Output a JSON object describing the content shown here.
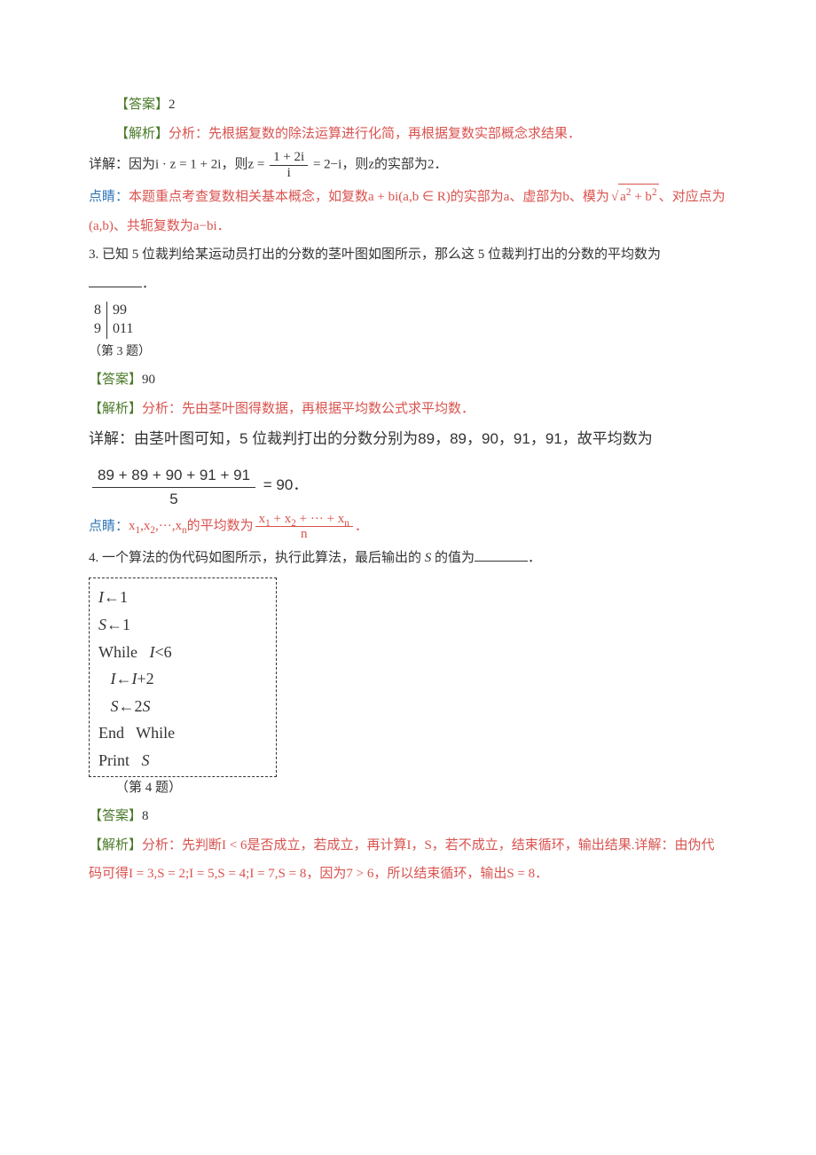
{
  "q2": {
    "answer_label": "【答案】",
    "answer_value": "2",
    "analysis_label": "【解析】",
    "analysis_text": "分析：先根据复数的除法运算进行化简，再根据复数实部概念求结果．",
    "detail_prefix": "详解：因为",
    "eq_lhs": "i · z = 1 + 2i",
    "eq_mid": "，则",
    "frac_num": "1 + 2i",
    "frac_den": "i",
    "eq_rhs": " = 2−i",
    "tail": "，则z的实部为2．",
    "note_prefix": "点睛：本题重点考查复数相关基本概念，如复数a + bi(a,b ∈ R)的实部为a、虚部为b、模为",
    "sqrt_inner": "a<sup>2</sup> + b<sup>2</sup>",
    "note_suffix": "、对应点为",
    "note_line2": "(a,b)、共轭复数为a−bi．"
  },
  "q3": {
    "stem": "3.  已知 5 位裁判给某运动员打出的分数的茎叶图如图所示，那么这 5 位裁判打出的分数的平均数为",
    "blank_suffix": "．",
    "stemleaf": {
      "rows": [
        {
          "stem": "8",
          "leaf": "99"
        },
        {
          "stem": "9",
          "leaf": "011"
        }
      ],
      "caption": "（第 3 题）"
    },
    "answer_label": "【答案】",
    "answer_value": "90",
    "analysis_label": "【解析】",
    "analysis_text": "分析：先由茎叶图得数据，再根据平均数公式求平均数．",
    "detail_text": "详解：由茎叶图可知，5 位裁判打出的分数分别为89，89，90，91，91，故平均数为",
    "calc_num": "89 + 89 + 90 + 91 + 91",
    "calc_den": "5",
    "calc_result": " = 90．",
    "note_prefix": "点睛：",
    "note_seq": "x<sub>1</sub>,x<sub>2</sub>,···,x<sub>n</sub>的平均数为",
    "note_frac_num": "x<sub>1</sub> + x<sub>2</sub> + ··· + x<sub>n</sub>",
    "note_frac_den": "n",
    "note_period": "．"
  },
  "q4": {
    "stem_a": "4.  一个算法的伪代码如图所示，执行此算法，最后输出的 ",
    "stem_var": "S",
    "stem_b": " 的值为",
    "blank_suffix": "．",
    "code": {
      "l1_a": "I",
      "l1_b": "←1",
      "l2_a": "S",
      "l2_b": "←1",
      "l3": "While   ",
      "l3_var": "I",
      "l3_b": "<6",
      "l4_a": "   I",
      "l4_b": "←",
      "l4_c": "I",
      "l4_d": "+2",
      "l5_a": "   S",
      "l5_b": "←2",
      "l5_c": "S",
      "l6": "End   While",
      "l7": "Print   ",
      "l7_var": "S"
    },
    "caption": "（第 4 题）",
    "answer_label": "【答案】",
    "answer_value": "8",
    "analysis_label": "【解析】",
    "analysis_text": "分析：先判断I < 6是否成立，若成立，再计算I，S，若不成立，结束循环，输出结果.详解：由伪代",
    "analysis_line2": "码可得I = 3,S = 2;I = 5,S = 4;I = 7,S = 8，因为7 > 6，所以结束循环，输出S = 8．"
  },
  "colors": {
    "red": "#d9534f",
    "blue": "#2e75b6",
    "green": "#4a7a2a",
    "text": "#333333",
    "bg": "#ffffff"
  }
}
